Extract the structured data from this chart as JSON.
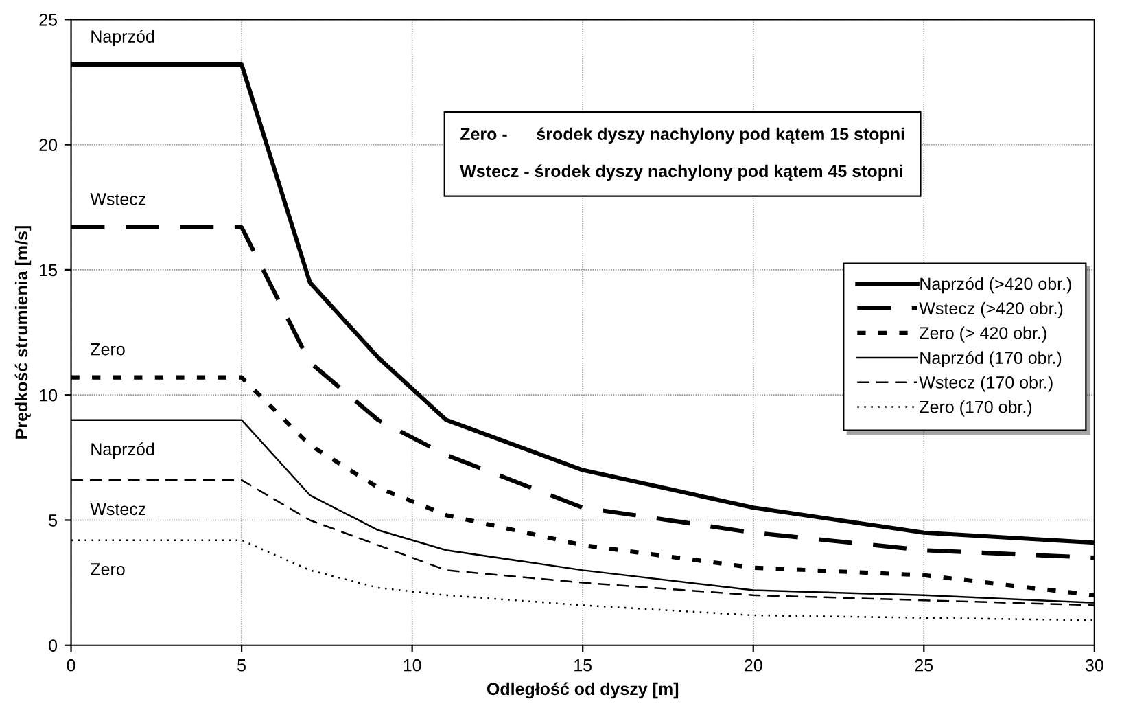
{
  "chart_data": {
    "type": "line",
    "xlabel": "Odległość od dyszy [m]",
    "ylabel": "Prędkość strumienia [m/s]",
    "x": [
      0,
      5,
      7,
      9,
      11,
      15,
      20,
      25,
      30
    ],
    "series": [
      {
        "name": "Naprzód (>420 obr.)",
        "color": "#000000",
        "line_style": "solid",
        "values": [
          23.2,
          23.2,
          14.5,
          11.5,
          9,
          7,
          5.5,
          4.5,
          4.1
        ]
      },
      {
        "name": "Wstecz (>420 obr.)",
        "color": "#000000",
        "line_style": "dashed",
        "values": [
          16.7,
          16.7,
          11.3,
          9,
          7.6,
          5.5,
          4.5,
          3.8,
          3.5
        ]
      },
      {
        "name": "Zero (> 420 obr.)",
        "color": "#000000",
        "line_style": "dotted",
        "values": [
          10.7,
          10.7,
          8,
          6.3,
          5.2,
          4,
          3.1,
          2.8,
          2
        ]
      },
      {
        "name": "Naprzód (170 obr.)",
        "color": "#000000",
        "line_style": "solid",
        "values": [
          9,
          9,
          6,
          4.6,
          3.8,
          3,
          2.2,
          2,
          1.7
        ]
      },
      {
        "name": "Wstecz (170 obr.)",
        "color": "#000000",
        "line_style": "dashed",
        "values": [
          6.6,
          6.6,
          5,
          4,
          3,
          2.5,
          2,
          1.8,
          1.6
        ]
      },
      {
        "name": "Zero (170 obr.)",
        "color": "#000000",
        "line_style": "dotted",
        "values": [
          4.2,
          4.2,
          3,
          2.3,
          2,
          1.6,
          1.2,
          1.1,
          1.0
        ]
      }
    ],
    "xlim": [
      0,
      30
    ],
    "xticks": [
      0,
      5,
      10,
      15,
      20,
      25,
      30
    ],
    "ylim": [
      0,
      25
    ],
    "yticks": [
      0,
      5,
      10,
      15,
      20,
      25
    ],
    "grid": true,
    "legend": "right",
    "marker": "none",
    "annotations": [
      "Naprzód",
      "Wstecz",
      "Zero",
      "Naprzód",
      "Wstecz",
      "Zero",
      "Zero -      środek dyszy nachylony pod kątem 15 stopni\n\nWstecz - środek dyszy nachylony pod kątem 45 stopni"
    ]
  }
}
